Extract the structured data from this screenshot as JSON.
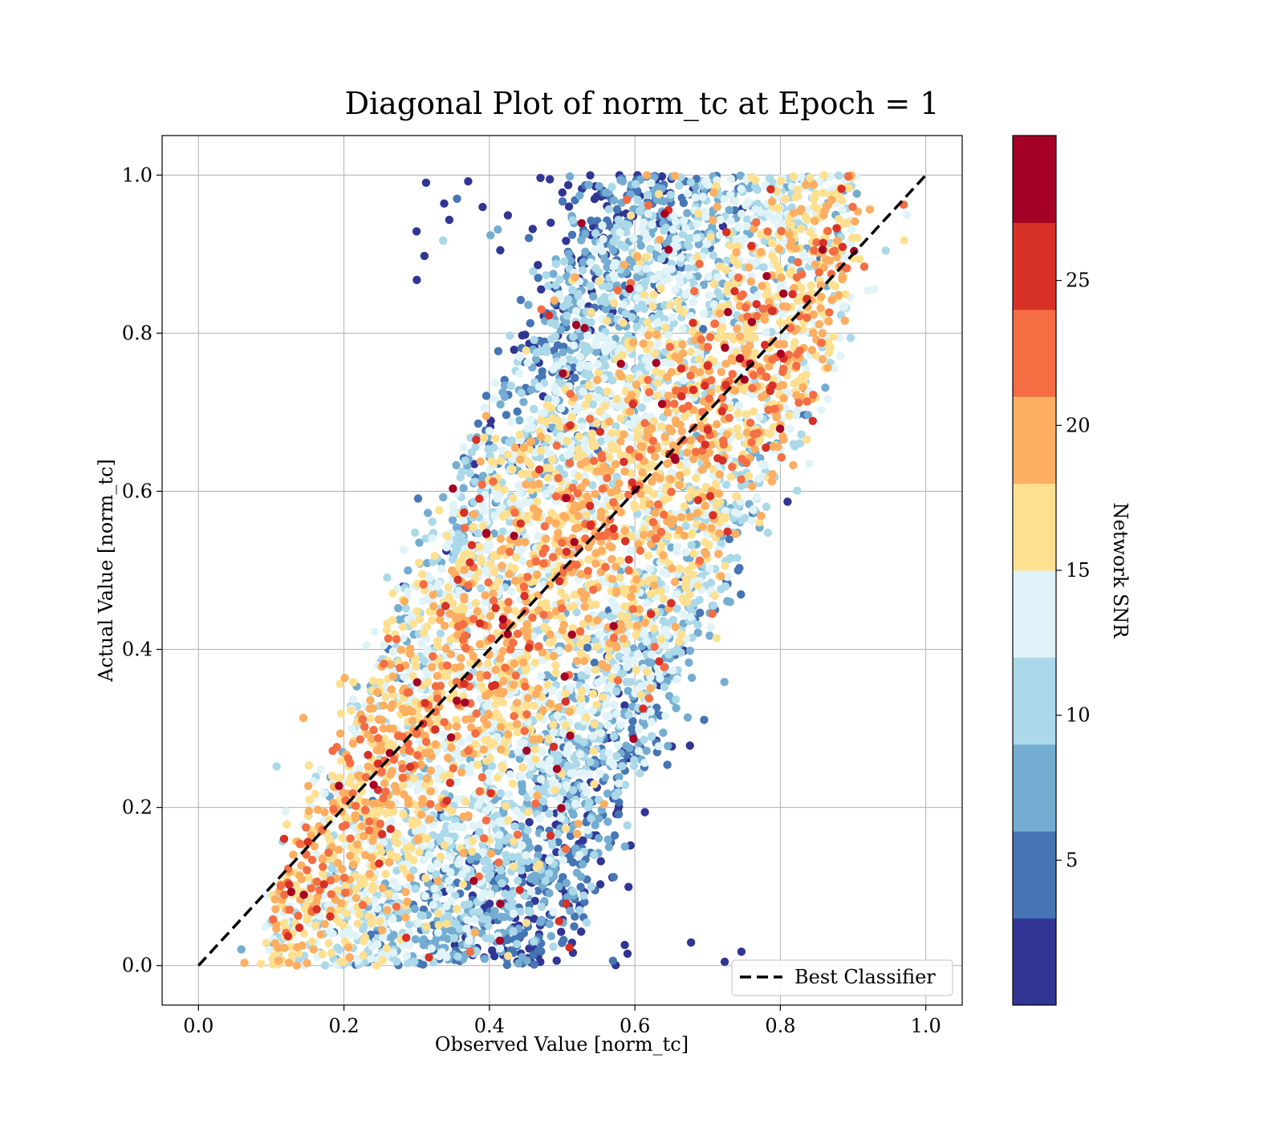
{
  "chart_data": {
    "type": "scatter",
    "title": "Diagonal Plot of norm_tc at Epoch = 1",
    "xlabel": "Observed Value [norm_tc]",
    "ylabel": "Actual Value [norm_tc]",
    "xlim": [
      -0.05,
      1.05
    ],
    "ylim": [
      -0.05,
      1.05
    ],
    "xticks": [
      "0.0",
      "0.2",
      "0.4",
      "0.6",
      "0.8",
      "1.0"
    ],
    "yticks": [
      "0.0",
      "0.2",
      "0.4",
      "0.6",
      "0.8",
      "1.0"
    ],
    "grid": true,
    "legend": {
      "placement": "lower-right",
      "entries": [
        "Best Classifier"
      ]
    },
    "diagonal_line": {
      "x": [
        0.0,
        1.0
      ],
      "y": [
        0.0,
        1.0
      ],
      "style": "dashed",
      "color": "#000000"
    },
    "colorbar": {
      "label": "Network SNR",
      "range": [
        0,
        30
      ],
      "ticks": [
        "5",
        "10",
        "15",
        "20",
        "25"
      ],
      "levels": [
        "#313695",
        "#4575b4",
        "#74add1",
        "#abd9e9",
        "#e0f3f8",
        "#fee090",
        "#fdae61",
        "#f46d43",
        "#d73027",
        "#a50026"
      ]
    },
    "scatter_description": {
      "point_count_approx": 20000,
      "x_range_approx": [
        0.08,
        0.9
      ],
      "y_range": [
        0.0,
        1.0
      ],
      "color_encoding": "Network SNR"
    }
  }
}
